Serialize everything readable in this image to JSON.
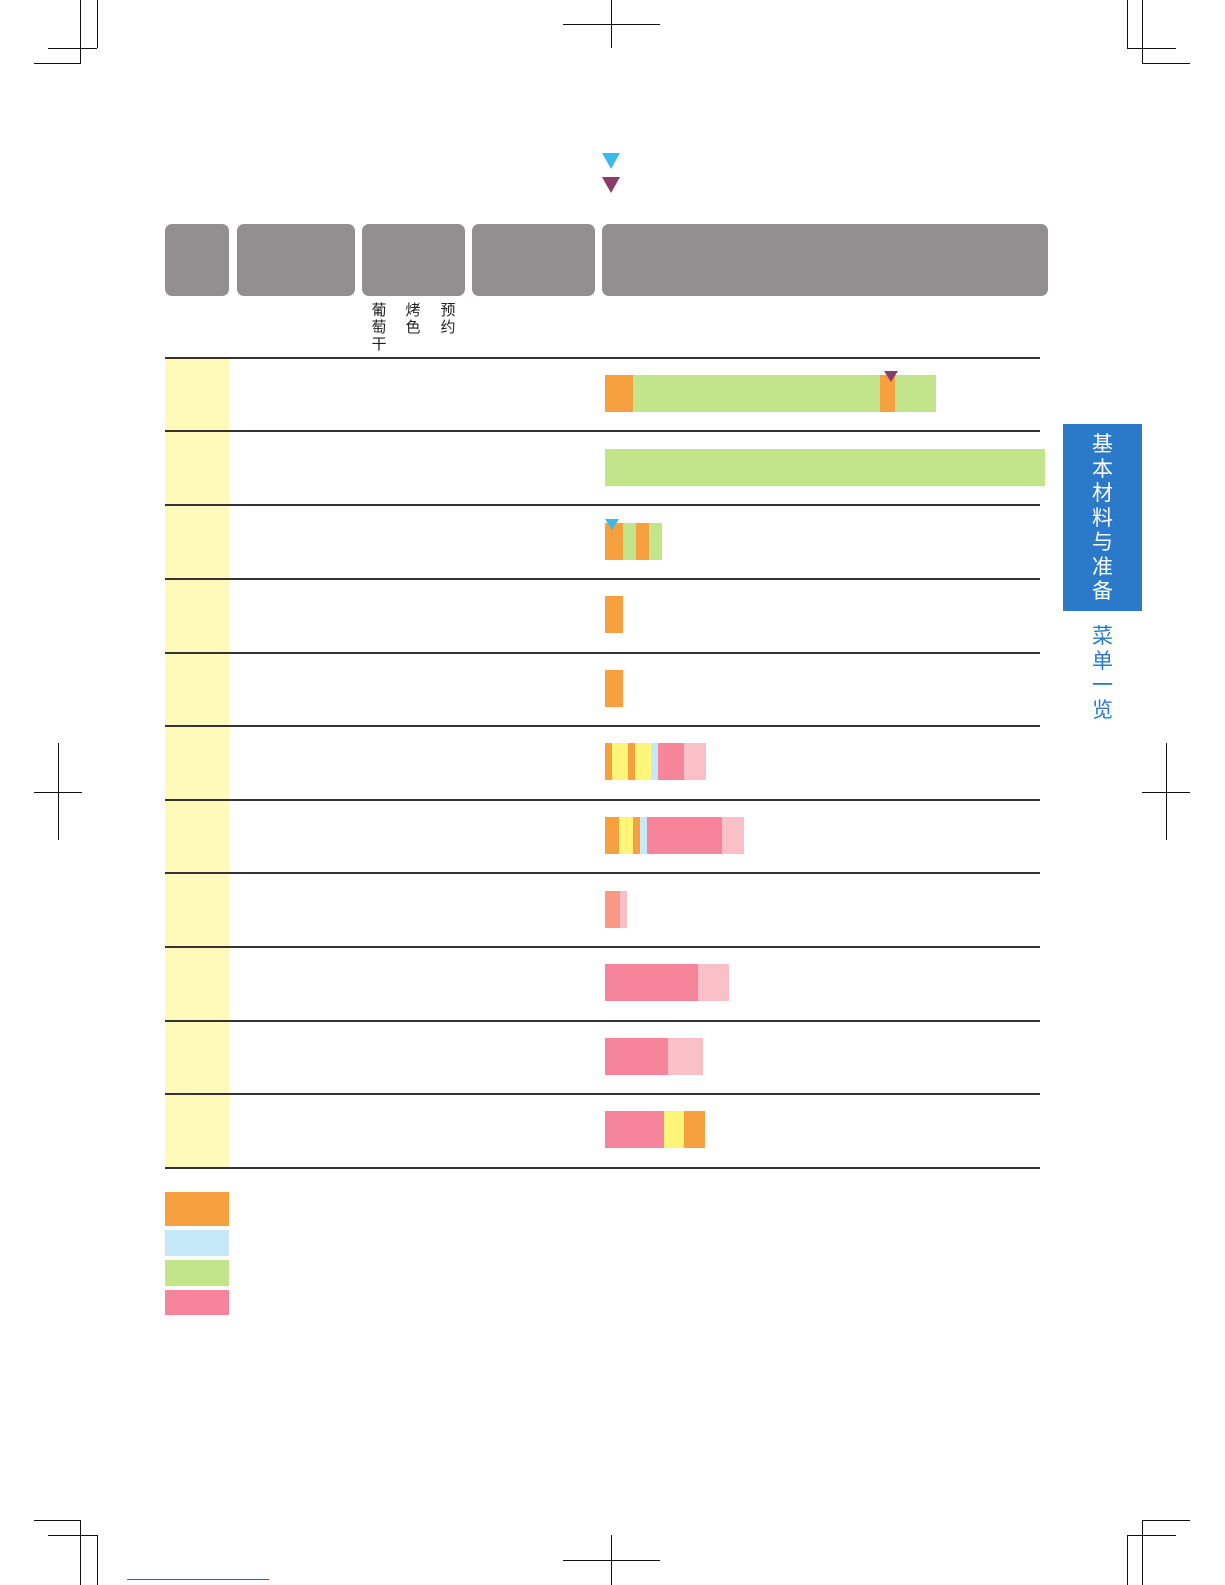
{
  "header": {
    "sub_labels": [
      "葡\n萄\n干",
      "烤\n色",
      "预\n约"
    ]
  },
  "side_tab": {
    "active_label": "基\n本\n材\n料\n与\n准\n备",
    "next_label": "菜\n单\n一\n览"
  },
  "colors": {
    "orange": "#f7a03f",
    "light_blue": "#c6e9f9",
    "green": "#c2e58c",
    "pink": "#f6859c",
    "light_pink": "#fac0c7",
    "yellow": "#fff679",
    "salmon": "#fa9886",
    "row_label_bg": "#fffab9",
    "header_gray": "#918f90",
    "tab_blue": "#2a7ac9"
  },
  "chart_data": {
    "type": "bar",
    "rows": [
      {
        "segments": [
          {
            "color": "orange",
            "length": 28
          },
          {
            "color": "green",
            "length": 247
          },
          {
            "color": "orange",
            "length": 15
          },
          {
            "color": "green",
            "length": 41
          }
        ],
        "marker": {
          "color": "purple",
          "at": 286
        }
      },
      {
        "segments": [
          {
            "color": "green",
            "length": 440
          }
        ]
      },
      {
        "segments": [
          {
            "color": "orange",
            "length": 18
          },
          {
            "color": "green",
            "length": 13
          },
          {
            "color": "orange",
            "length": 13
          },
          {
            "color": "green",
            "length": 13
          }
        ],
        "marker": {
          "color": "cyan",
          "at": 7
        }
      },
      {
        "segments": [
          {
            "color": "orange",
            "length": 18
          }
        ]
      },
      {
        "segments": [
          {
            "color": "orange",
            "length": 18
          }
        ]
      },
      {
        "segments": [
          {
            "color": "orange",
            "length": 7
          },
          {
            "color": "yellow",
            "length": 16
          },
          {
            "color": "orange",
            "length": 7
          },
          {
            "color": "yellow",
            "length": 16
          },
          {
            "color": "light_blue",
            "length": 7
          },
          {
            "color": "pink",
            "length": 26
          },
          {
            "color": "light_pink",
            "length": 22
          }
        ]
      },
      {
        "segments": [
          {
            "color": "orange",
            "length": 14
          },
          {
            "color": "yellow",
            "length": 14
          },
          {
            "color": "orange",
            "length": 7
          },
          {
            "color": "light_blue",
            "length": 7
          },
          {
            "color": "pink",
            "length": 75
          },
          {
            "color": "light_pink",
            "length": 22
          }
        ]
      },
      {
        "segments": [
          {
            "color": "salmon",
            "length": 15
          },
          {
            "color": "light_pink",
            "length": 7
          }
        ]
      },
      {
        "segments": [
          {
            "color": "pink",
            "length": 93
          },
          {
            "color": "light_pink",
            "length": 31
          }
        ]
      },
      {
        "segments": [
          {
            "color": "pink",
            "length": 63
          },
          {
            "color": "light_pink",
            "length": 35
          }
        ]
      },
      {
        "segments": [
          {
            "color": "pink",
            "length": 59
          },
          {
            "color": "yellow",
            "length": 20
          },
          {
            "color": "orange",
            "length": 21
          }
        ]
      }
    ]
  },
  "legend": [
    "orange",
    "light_blue",
    "green",
    "pink"
  ]
}
